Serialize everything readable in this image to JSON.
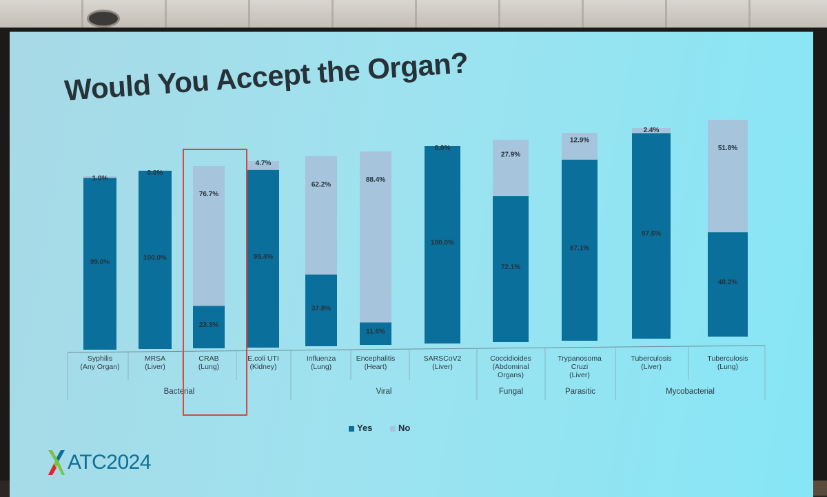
{
  "slide_title": "Would You Accept the Organ?",
  "logo_text": "ATC2024",
  "colors": {
    "yes": "#0b6f9c",
    "no": "#a6c4dc",
    "highlight_box": "#d64a3a",
    "title": "#263238"
  },
  "chart_data": {
    "type": "bar",
    "stacked": true,
    "percent": true,
    "title": "Would You Accept the Organ?",
    "categories": [
      "Syphilis (Any Organ)",
      "MRSA (Liver)",
      "CRAB (Lung)",
      "E.coli UTI (Kidney)",
      "Influenza (Lung)",
      "Encephalitis (Heart)",
      "SARSCoV2 (Liver)",
      "Coccidioides (Abdominal Organs)",
      "Trypanosoma Cruzi (Liver)",
      "Tuberculosis (Liver)",
      "Tuberculosis (Lung)"
    ],
    "category_lines": [
      [
        "Syphilis",
        "(Any Organ)"
      ],
      [
        "MRSA",
        "(Liver)"
      ],
      [
        "CRAB",
        "(Lung)"
      ],
      [
        "E.coli UTI",
        "(Kidney)"
      ],
      [
        "Influenza",
        "(Lung)"
      ],
      [
        "Encephalitis",
        "(Heart)"
      ],
      [
        "SARSCoV2",
        "(Liver)"
      ],
      [
        "Coccidioides",
        "(Abdominal",
        "Organs)"
      ],
      [
        "Trypanosoma",
        "Cruzi",
        "(Liver)"
      ],
      [
        "Tuberculosis",
        "(Liver)"
      ],
      [
        "Tuberculosis",
        "(Lung)"
      ]
    ],
    "groups": [
      {
        "name": "Bacterial",
        "from": 0,
        "to": 3
      },
      {
        "name": "Viral",
        "from": 4,
        "to": 6
      },
      {
        "name": "Fungal",
        "from": 7,
        "to": 7
      },
      {
        "name": "Parasitic",
        "from": 8,
        "to": 8
      },
      {
        "name": "Mycobacterial",
        "from": 9,
        "to": 10
      }
    ],
    "series": [
      {
        "name": "Yes",
        "values": [
          99.0,
          100.0,
          23.3,
          95.4,
          37.8,
          11.6,
          100.0,
          72.1,
          87.1,
          97.6,
          48.2
        ],
        "labels": [
          "99.0%",
          "100.0%",
          "23.3%",
          "95.4%",
          "37.8%",
          "11.6%",
          "100.0%",
          "72.1%",
          "87.1%",
          "97.6%",
          "48.2%"
        ]
      },
      {
        "name": "No",
        "values": [
          1.0,
          0.0,
          76.7,
          4.7,
          62.2,
          88.4,
          0.0,
          27.9,
          12.9,
          2.4,
          51.8
        ],
        "labels": [
          "1.0%",
          "0.0%",
          "76.7%",
          "4.7%",
          "62.2%",
          "88.4%",
          "0.0%",
          "27.9%",
          "12.9%",
          "2.4%",
          "51.8%"
        ]
      }
    ],
    "ylim": [
      0,
      100
    ],
    "legend": "bottom",
    "grid": false,
    "highlighted_category": "CRAB (Lung)"
  }
}
